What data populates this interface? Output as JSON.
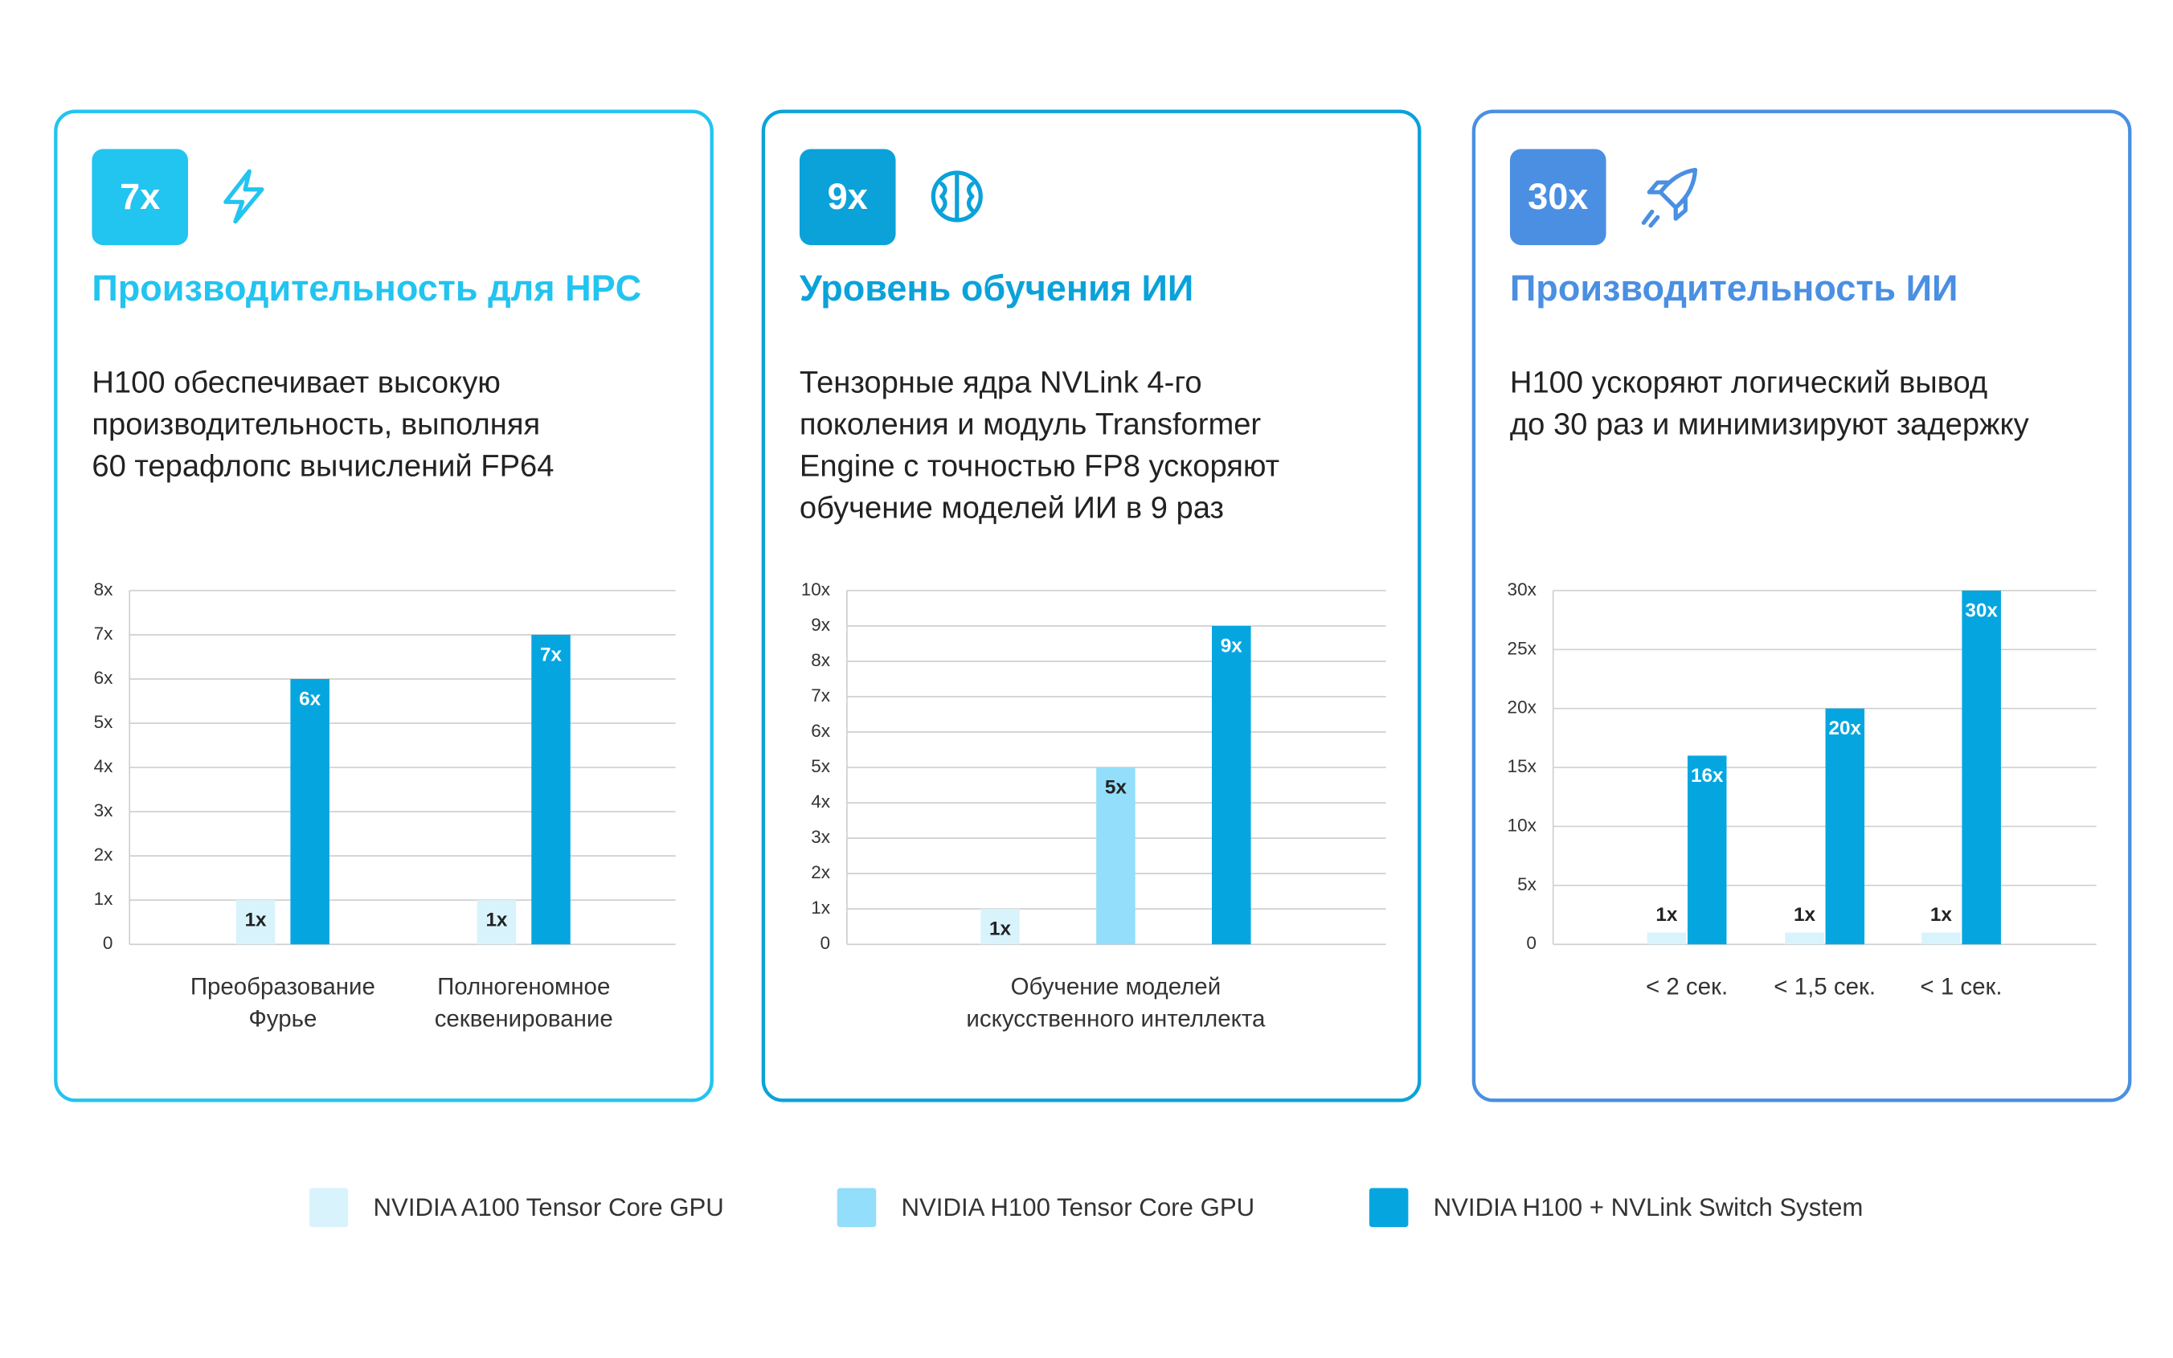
{
  "legend": [
    {
      "name": "NVIDIA A100 Tensor Core GPU",
      "color": "#d9f3fc"
    },
    {
      "name": "NVIDIA H100 Tensor Core GPU",
      "color": "#93defa"
    },
    {
      "name": "NVIDIA H100 + NVLink Switch System",
      "color": "#05a6e0"
    }
  ],
  "chart_data": [
    {
      "type": "bar",
      "badge": "7x",
      "title": "Производительность для HPC",
      "accent": "#22c4f0",
      "description": [
        "H100 обеспечивает высокую",
        "производительность, выполняя",
        "60 терафлопс вычислений FP64"
      ],
      "categories": [
        "Преобразование Фурье",
        "Полногеномное секвенирование"
      ],
      "series": [
        {
          "color": "#d9f3fc",
          "values": [
            1,
            1
          ],
          "value_labels": [
            "1x",
            "1x"
          ]
        },
        {
          "color": "#05a6e0",
          "values": [
            6,
            7
          ],
          "value_labels": [
            "6x",
            "7x"
          ]
        }
      ],
      "ylim": [
        0,
        8
      ],
      "yticks": [
        0,
        {
          "value": 1,
          "label": "1x"
        },
        {
          "value": 2,
          "label": "2x"
        },
        {
          "value": 3,
          "label": "3x"
        },
        {
          "value": 4,
          "label": "4x"
        },
        {
          "value": 5,
          "label": "5x"
        },
        {
          "value": 6,
          "label": "6x"
        },
        {
          "value": 7,
          "label": "7x"
        },
        {
          "value": 8,
          "label": "8x"
        }
      ],
      "grid": true
    },
    {
      "type": "bar",
      "badge": "9x",
      "title": "Уровень обучения ИИ",
      "accent": "#0ba2da",
      "description": [
        "Тензорные ядра NVLink 4-го",
        "поколения и модуль Transformer",
        "Engine с точностью FP8 ускоряют",
        "обучение моделей ИИ в 9 раз"
      ],
      "categories": [
        "Обучение моделей искусственного интеллекта"
      ],
      "series": [
        {
          "color": "#d9f3fc",
          "values": [
            1
          ],
          "value_labels": [
            "1x"
          ]
        },
        {
          "color": "#93defa",
          "values": [
            5
          ],
          "value_labels": [
            "5x"
          ]
        },
        {
          "color": "#05a6e0",
          "values": [
            9
          ],
          "value_labels": [
            "9x"
          ]
        }
      ],
      "ylim": [
        0,
        10
      ],
      "yticks": [
        0,
        {
          "value": 1,
          "label": "1x"
        },
        {
          "value": 2,
          "label": "2x"
        },
        {
          "value": 3,
          "label": "3x"
        },
        {
          "value": 4,
          "label": "4x"
        },
        {
          "value": 5,
          "label": "5x"
        },
        {
          "value": 6,
          "label": "6x"
        },
        {
          "value": 7,
          "label": "7x"
        },
        {
          "value": 8,
          "label": "8x"
        },
        {
          "value": 9,
          "label": "9x"
        },
        {
          "value": 10,
          "label": "10x"
        }
      ],
      "grid": true
    },
    {
      "type": "bar",
      "badge": "30x",
      "title": "Производительность ИИ",
      "accent": "#4a8fe2",
      "description": [
        "H100 ускоряют логический вывод",
        "до 30 раз и минимизируют задержку"
      ],
      "categories": [
        "< 2 сек.",
        "< 1,5 сек.",
        "< 1 сек."
      ],
      "series": [
        {
          "color": "#d9f3fc",
          "values": [
            1,
            1,
            1
          ],
          "value_labels": [
            "1x",
            "1x",
            "1x"
          ]
        },
        {
          "color": "#05a6e0",
          "values": [
            16,
            20,
            30
          ],
          "value_labels": [
            "16x",
            "20x",
            "30x"
          ]
        }
      ],
      "ylim": [
        0,
        30
      ],
      "yticks": [
        0,
        {
          "value": 5,
          "label": "5x"
        },
        {
          "value": 10,
          "label": "10x"
        },
        {
          "value": 15,
          "label": "15x"
        },
        {
          "value": 20,
          "label": "20x"
        },
        {
          "value": 25,
          "label": "25x"
        },
        {
          "value": 30,
          "label": "30x"
        }
      ],
      "grid": true
    }
  ]
}
